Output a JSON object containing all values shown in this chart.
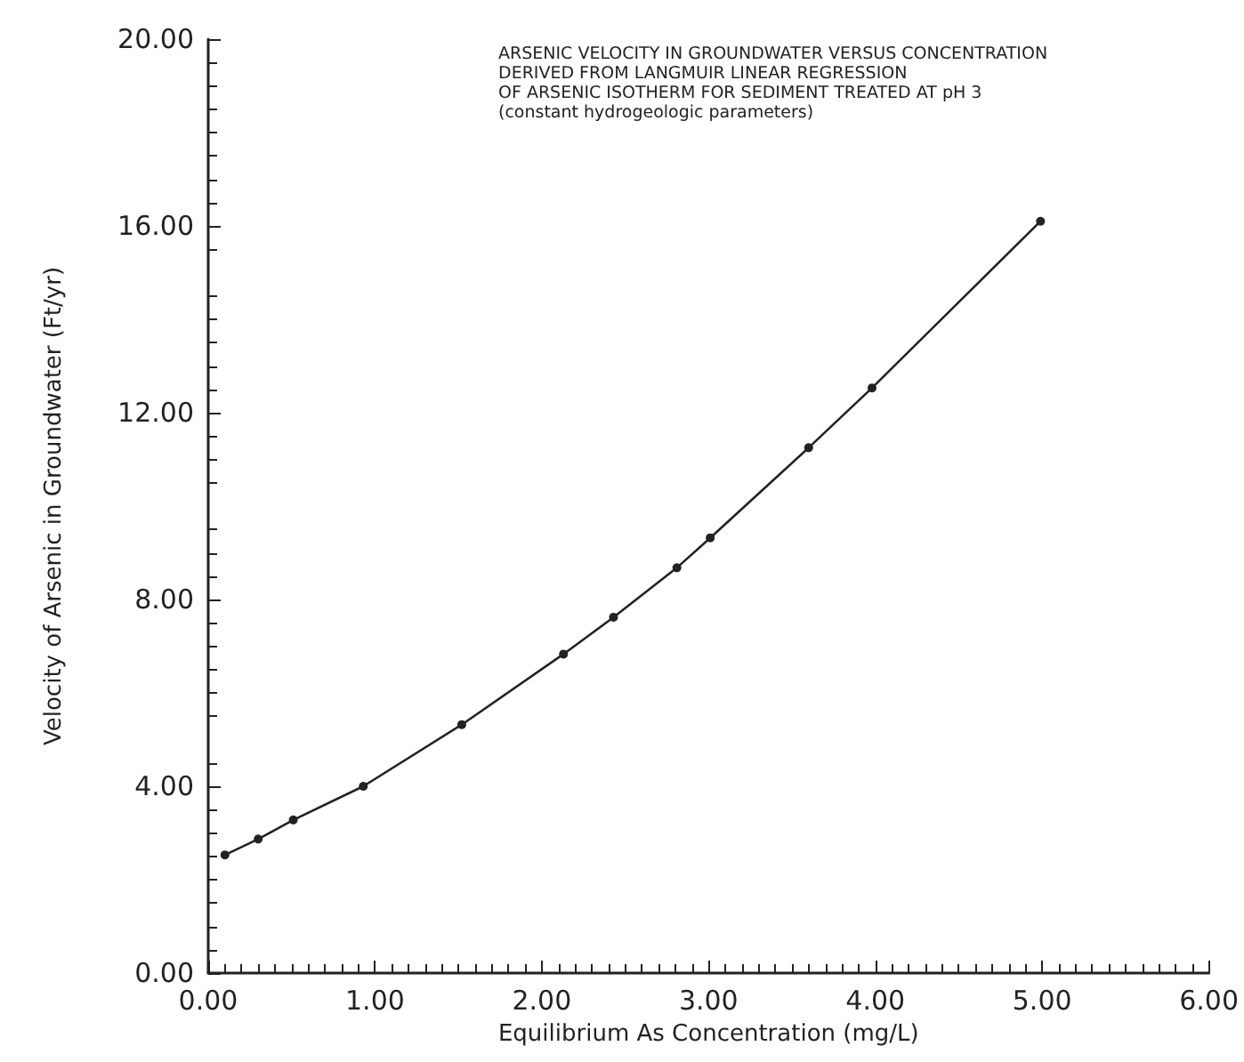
{
  "chart_data": {
    "type": "line",
    "title": "ARSENIC VELOCITY IN GROUNDWATER VERSUS CONCENTRATION\nDERIVED FROM LANGMUIR LINEAR REGRESSION\nOF ARSENIC ISOTHERM FOR SEDIMENT TREATED AT pH 3\n(constant hydrogeologic parameters)",
    "xlabel": "Equilibrium As Concentration (mg/L)",
    "ylabel": "Velocity of Arsenic in Groundwater (Ft/yr)",
    "x": [
      0.1,
      0.3,
      0.51,
      0.93,
      1.52,
      2.13,
      2.43,
      2.81,
      3.01,
      3.6,
      3.98,
      4.99
    ],
    "values": [
      2.53,
      2.87,
      3.28,
      4.0,
      5.32,
      6.83,
      7.62,
      8.68,
      9.32,
      11.25,
      12.53,
      16.1
    ],
    "color": "#222222",
    "marker": "circle",
    "line_style": "solid",
    "grid": false,
    "xlim": [
      0,
      6
    ],
    "xticks": [
      {
        "value": 0,
        "label": "0.00"
      },
      {
        "value": 1,
        "label": "1.00"
      },
      {
        "value": 2,
        "label": "2.00"
      },
      {
        "value": 3,
        "label": "3.00"
      },
      {
        "value": 4,
        "label": "4.00"
      },
      {
        "value": 5,
        "label": "5.00"
      },
      {
        "value": 6,
        "label": "6.00"
      }
    ],
    "ylim": [
      0,
      20
    ],
    "yticks": [
      {
        "value": 0,
        "label": "0.00"
      },
      {
        "value": 4,
        "label": "4.00"
      },
      {
        "value": 8,
        "label": "8.00"
      },
      {
        "value": 12,
        "label": "12.00"
      },
      {
        "value": 16,
        "label": "16.00"
      },
      {
        "value": 20,
        "label": "20.00"
      }
    ]
  }
}
